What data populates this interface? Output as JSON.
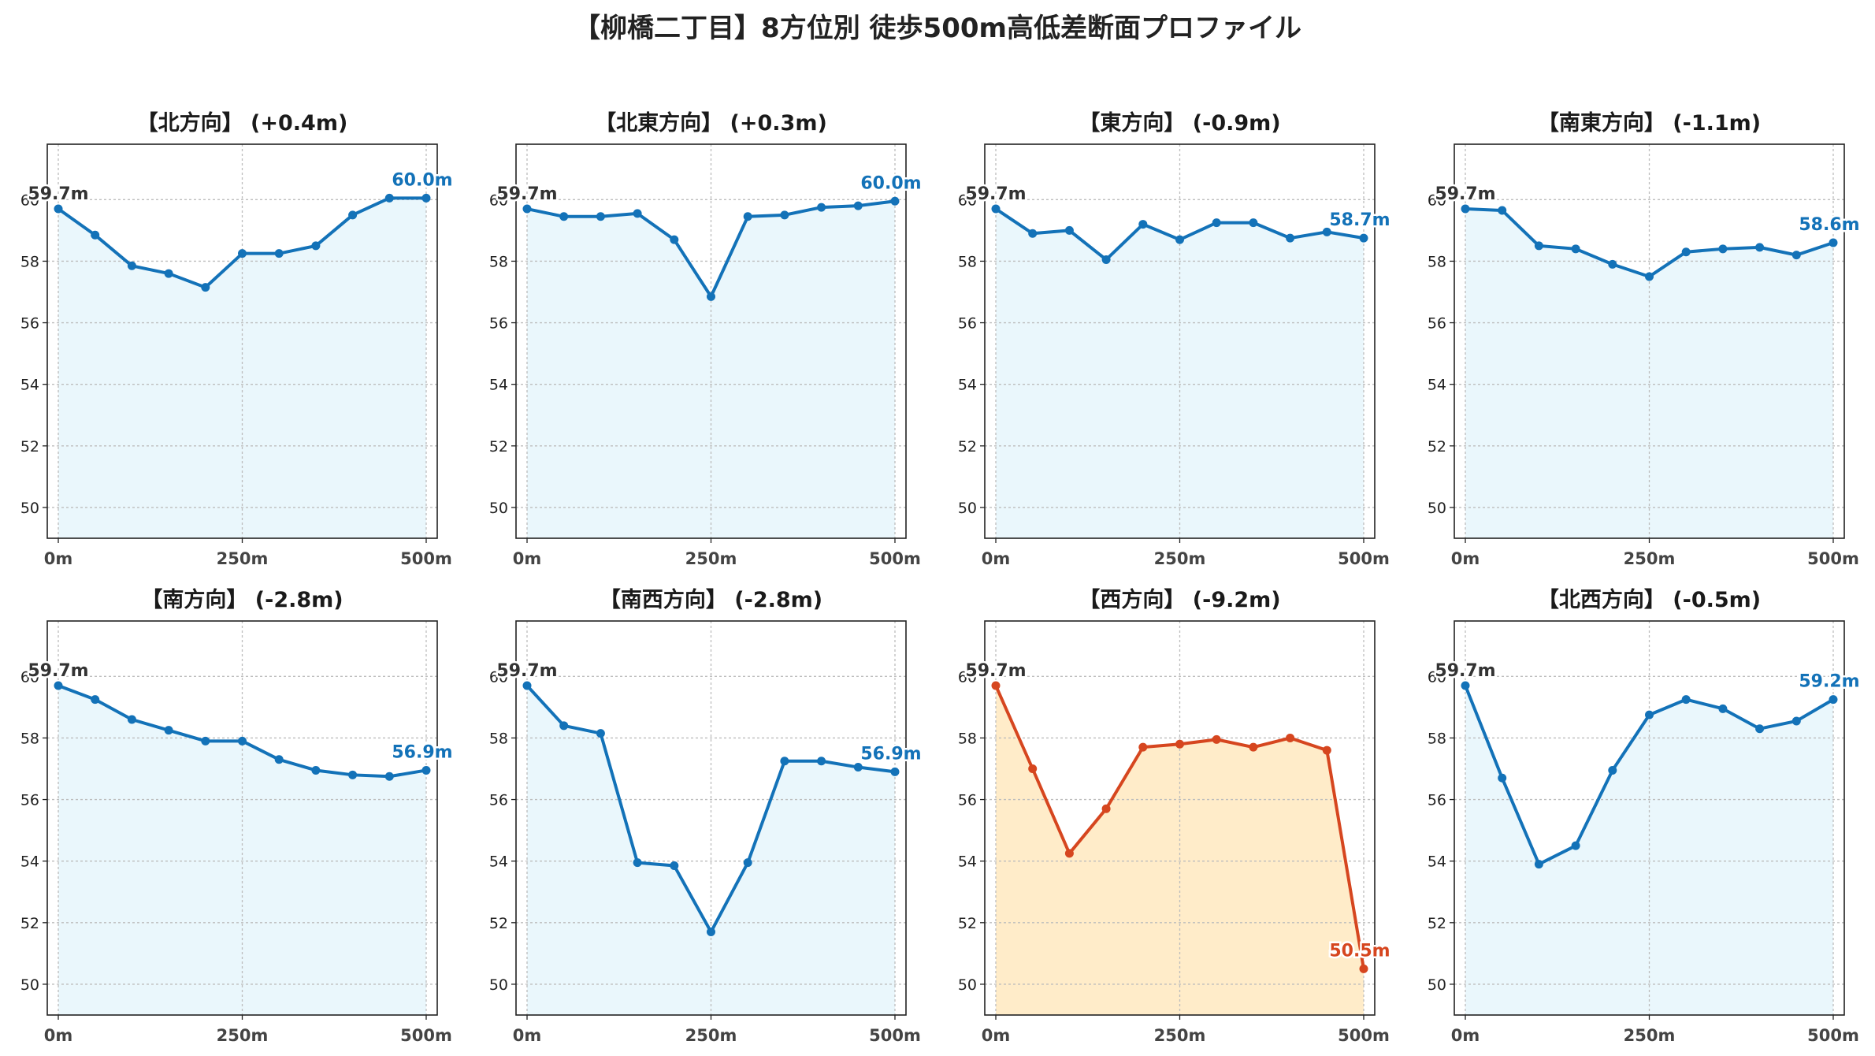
{
  "title": "【柳橋二丁目】8方位別 徒歩500m高低差断面プロファイル",
  "colors": {
    "line_default": "#1372b8",
    "fill_default": "#eaf7fc",
    "line_drop": "#d6461f",
    "fill_drop": "#ffecc9",
    "start_label": "#333333",
    "grid": "#bdbdbd"
  },
  "chart_data": [
    {
      "type": "line",
      "title": "【北方向】 (+0.4m)",
      "x": [
        0,
        50,
        100,
        150,
        200,
        250,
        300,
        350,
        400,
        450,
        500
      ],
      "values": [
        59.7,
        58.85,
        57.85,
        57.6,
        57.15,
        58.25,
        58.25,
        58.5,
        59.5,
        60.05,
        60.05
      ],
      "start_label": "59.7m",
      "end_label": "60.0m",
      "style": "default"
    },
    {
      "type": "line",
      "title": "【北東方向】 (+0.3m)",
      "x": [
        0,
        50,
        100,
        150,
        200,
        250,
        300,
        350,
        400,
        450,
        500
      ],
      "values": [
        59.7,
        59.45,
        59.45,
        59.55,
        58.7,
        56.85,
        59.45,
        59.5,
        59.75,
        59.8,
        59.95
      ],
      "start_label": "59.7m",
      "end_label": "60.0m",
      "style": "default"
    },
    {
      "type": "line",
      "title": "【東方向】 (-0.9m)",
      "x": [
        0,
        50,
        100,
        150,
        200,
        250,
        300,
        350,
        400,
        450,
        500
      ],
      "values": [
        59.7,
        58.9,
        59.0,
        58.05,
        59.2,
        58.7,
        59.25,
        59.25,
        58.75,
        58.95,
        58.75
      ],
      "start_label": "59.7m",
      "end_label": "58.7m",
      "style": "default"
    },
    {
      "type": "line",
      "title": "【南東方向】 (-1.1m)",
      "x": [
        0,
        50,
        100,
        150,
        200,
        250,
        300,
        350,
        400,
        450,
        500
      ],
      "values": [
        59.7,
        59.65,
        58.5,
        58.4,
        57.9,
        57.5,
        58.3,
        58.4,
        58.45,
        58.2,
        58.6
      ],
      "start_label": "59.7m",
      "end_label": "58.6m",
      "style": "default"
    },
    {
      "type": "line",
      "title": "【南方向】 (-2.8m)",
      "x": [
        0,
        50,
        100,
        150,
        200,
        250,
        300,
        350,
        400,
        450,
        500
      ],
      "values": [
        59.7,
        59.25,
        58.6,
        58.25,
        57.9,
        57.9,
        57.3,
        56.95,
        56.8,
        56.75,
        56.95
      ],
      "start_label": "59.7m",
      "end_label": "56.9m",
      "style": "default"
    },
    {
      "type": "line",
      "title": "【南西方向】 (-2.8m)",
      "x": [
        0,
        50,
        100,
        150,
        200,
        250,
        300,
        350,
        400,
        450,
        500
      ],
      "values": [
        59.7,
        58.4,
        58.15,
        53.95,
        53.85,
        51.7,
        53.95,
        57.25,
        57.25,
        57.05,
        56.9
      ],
      "start_label": "59.7m",
      "end_label": "56.9m",
      "style": "default"
    },
    {
      "type": "line",
      "title": "【西方向】 (-9.2m)",
      "x": [
        0,
        50,
        100,
        150,
        200,
        250,
        300,
        350,
        400,
        450,
        500
      ],
      "values": [
        59.7,
        57.0,
        54.25,
        55.7,
        57.7,
        57.8,
        57.95,
        57.7,
        58.0,
        57.6,
        50.5
      ],
      "start_label": "59.7m",
      "end_label": "50.5m",
      "style": "drop"
    },
    {
      "type": "line",
      "title": "【北西方向】 (-0.5m)",
      "x": [
        0,
        50,
        100,
        150,
        200,
        250,
        300,
        350,
        400,
        450,
        500
      ],
      "values": [
        59.7,
        56.7,
        53.9,
        54.5,
        56.95,
        58.75,
        59.25,
        58.95,
        58.3,
        58.55,
        59.25
      ],
      "start_label": "59.7m",
      "end_label": "59.2m",
      "style": "default"
    }
  ],
  "axis": {
    "x_ticks": [
      0,
      250,
      500
    ],
    "x_tick_labels": [
      "0m",
      "250m",
      "500m"
    ],
    "y_ticks": [
      50,
      52,
      54,
      56,
      58,
      60
    ],
    "y_tick_labels": [
      "50",
      "52",
      "54",
      "56",
      "58",
      "60"
    ],
    "xlim": [
      -15,
      515
    ],
    "ylim": [
      49,
      61.8
    ],
    "grid": true
  }
}
